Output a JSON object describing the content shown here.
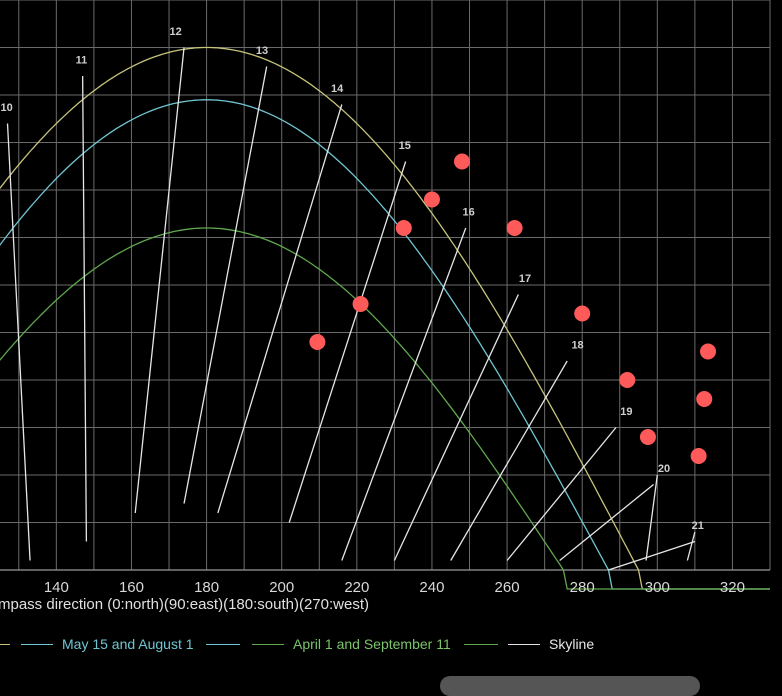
{
  "chart_data": {
    "type": "line",
    "xlabel": "mpass direction (0:north)(90:east)(180:south)(270:west)",
    "xlim": [
      125,
      330
    ],
    "x_ticks": [
      140,
      160,
      180,
      200,
      220,
      240,
      260,
      280,
      300,
      320
    ],
    "ylim": [
      0,
      60
    ],
    "grid": true,
    "sun_paths": [
      {
        "name": "",
        "color": "#c6c37a",
        "peak_elevation": 55
      },
      {
        "name": "May 15 and August 1",
        "color": "#6fc6d2",
        "peak_elevation": 49.5
      },
      {
        "name": "April 1 and September 11",
        "color": "#5fa84e",
        "peak_elevation": 36
      }
    ],
    "hour_labels": [
      {
        "label": "10",
        "x": 127,
        "y": 48
      },
      {
        "label": "11",
        "x": 147,
        "y": 53
      },
      {
        "label": "12",
        "x": 172,
        "y": 56
      },
      {
        "label": "13",
        "x": 195,
        "y": 54
      },
      {
        "label": "14",
        "x": 215,
        "y": 50
      },
      {
        "label": "15",
        "x": 233,
        "y": 44
      },
      {
        "label": "16",
        "x": 250,
        "y": 37
      },
      {
        "label": "17",
        "x": 265,
        "y": 30
      },
      {
        "label": "18",
        "x": 279,
        "y": 23
      },
      {
        "label": "19",
        "x": 292,
        "y": 16
      },
      {
        "label": "20",
        "x": 302,
        "y": 10
      },
      {
        "label": "21",
        "x": 311,
        "y": 4
      }
    ],
    "hour_lines": [
      {
        "x1": 127,
        "y1": 47,
        "x2": 133,
        "y2": 1
      },
      {
        "x1": 147,
        "y1": 52,
        "x2": 148,
        "y2": 3
      },
      {
        "x1": 174,
        "y1": 55,
        "x2": 161,
        "y2": 6
      },
      {
        "x1": 196,
        "y1": 53,
        "x2": 174,
        "y2": 7
      },
      {
        "x1": 216,
        "y1": 49,
        "x2": 183,
        "y2": 6
      },
      {
        "x1": 233,
        "y1": 43,
        "x2": 202,
        "y2": 5
      },
      {
        "x1": 249,
        "y1": 36,
        "x2": 216,
        "y2": 1
      },
      {
        "x1": 263,
        "y1": 29,
        "x2": 230,
        "y2": 1
      },
      {
        "x1": 276,
        "y1": 22,
        "x2": 245,
        "y2": 1
      },
      {
        "x1": 289,
        "y1": 15,
        "x2": 260,
        "y2": 1
      },
      {
        "x1": 299,
        "y1": 9,
        "x2": 274,
        "y2": 1
      },
      {
        "x1": 310,
        "y1": 3,
        "x2": 287,
        "y2": 0
      },
      {
        "x1": 300,
        "y1": 10,
        "x2": 297,
        "y2": 1
      },
      {
        "x1": 310,
        "y1": 4,
        "x2": 308,
        "y2": 1
      }
    ],
    "skyline_points": [
      {
        "x": 209.5,
        "y": 24
      },
      {
        "x": 221,
        "y": 28
      },
      {
        "x": 232.5,
        "y": 36
      },
      {
        "x": 240,
        "y": 39
      },
      {
        "x": 248,
        "y": 43
      },
      {
        "x": 262,
        "y": 36
      },
      {
        "x": 280,
        "y": 27
      },
      {
        "x": 292,
        "y": 20
      },
      {
        "x": 297.5,
        "y": 14
      },
      {
        "x": 311,
        "y": 12
      },
      {
        "x": 312.5,
        "y": 18
      },
      {
        "x": 313.5,
        "y": 23
      }
    ],
    "legend": [
      {
        "name": "May 15 and August 1",
        "color": "#6fc6d2"
      },
      {
        "name": "April 1 and September 11",
        "color": "#5fa84e"
      },
      {
        "name": "Skyline",
        "color": "#e0e0e0"
      }
    ]
  }
}
